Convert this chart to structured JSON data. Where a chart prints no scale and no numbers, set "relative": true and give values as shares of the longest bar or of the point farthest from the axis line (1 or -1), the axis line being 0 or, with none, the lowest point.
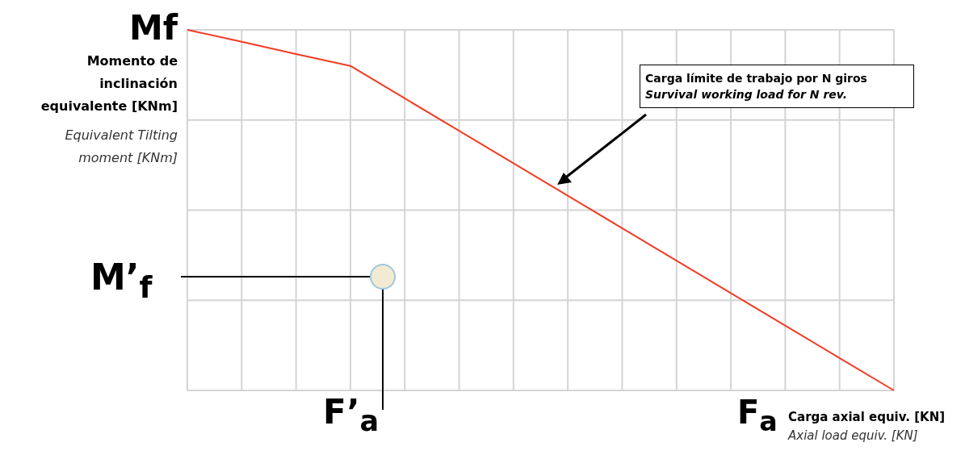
{
  "chart_data": {
    "type": "line",
    "relative": true,
    "xlabel": "F$_{a}$",
    "ylabel": "Mf",
    "categories": [
      null,
      null,
      null,
      null,
      null,
      null,
      null,
      null,
      null,
      null,
      null,
      null,
      null,
      null
    ],
    "grid": true,
    "marker": "none",
    "line_style": "solid",
    "series": [
      {
        "color": "#f03c24",
        "values": [
          1,
          0.967,
          0.933,
          0.9,
          0.81,
          0.72,
          0.63,
          0.54,
          0.45,
          0.36,
          0.27,
          0.18,
          0.09,
          0
        ]
      }
    ],
    "annotations": [
      "Carga límite de trabajo por N giros",
      "Survival working load for N rev.",
      "Momento de inclinación equivalente [KNm]",
      "Equivalent Tilting moment [KNm]",
      "Carga axial equiv. [KN]",
      "Axial load equiv. [KN]",
      "M’$_{f}$",
      "F’$_{a}$"
    ]
  }
}
